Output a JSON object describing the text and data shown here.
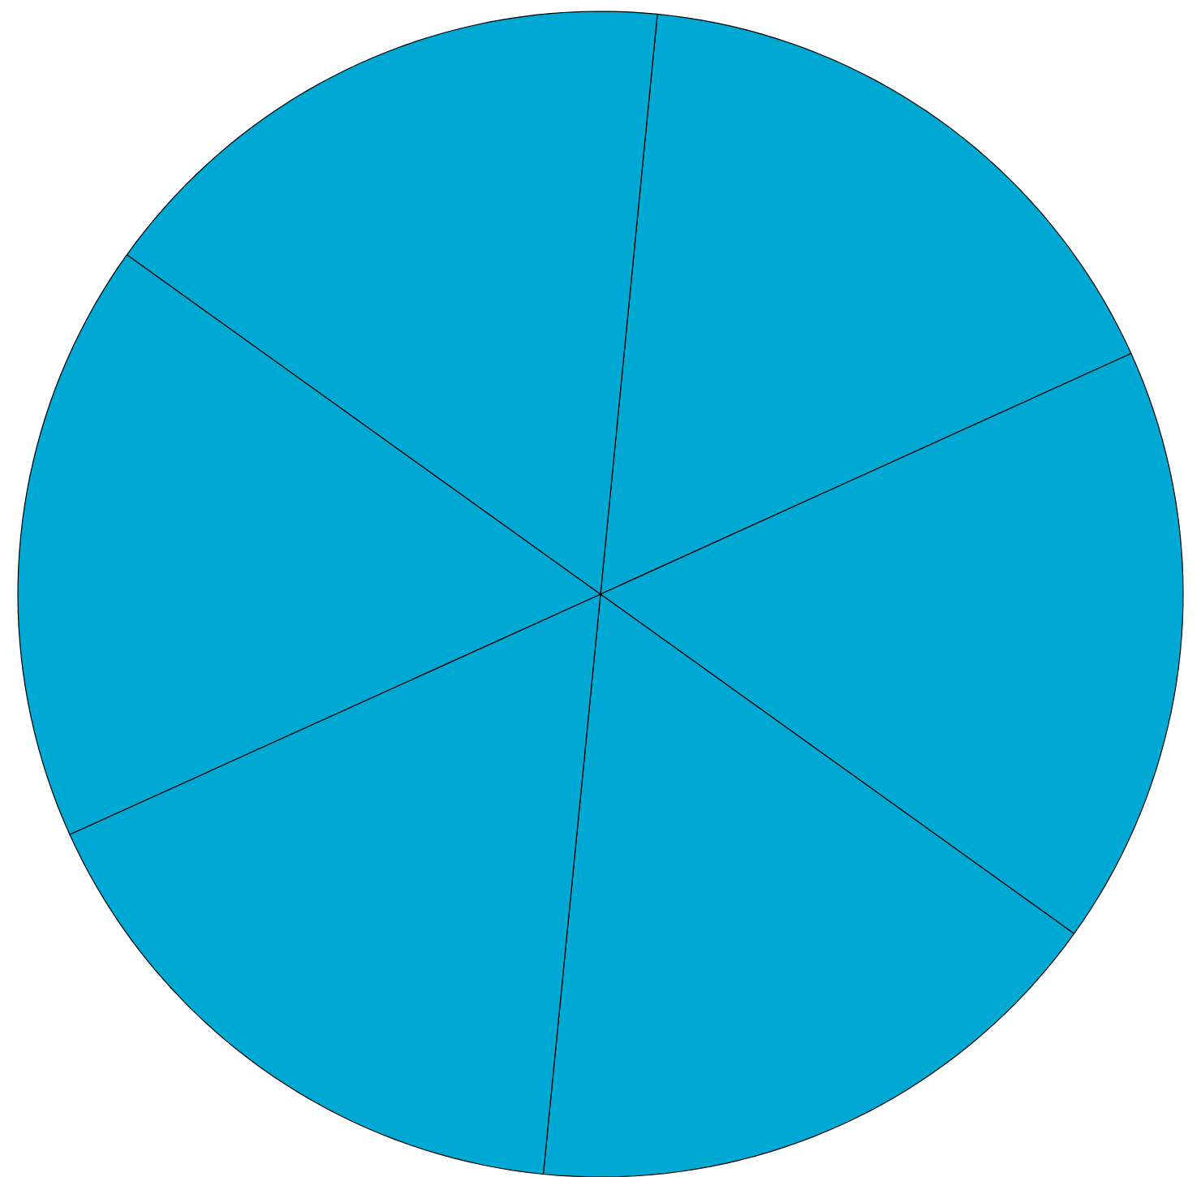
{
  "chart_data": {
    "type": "pie",
    "categories": [
      null,
      null,
      null,
      null,
      null,
      null
    ],
    "values": [
      16.67,
      16.67,
      16.67,
      16.67,
      16.66,
      16.66
    ],
    "colors": [
      "#00a9d4",
      "#00a9d4",
      "#00a9d4",
      "#00a9d4",
      "#00a9d4",
      "#00a9d4"
    ]
  }
}
